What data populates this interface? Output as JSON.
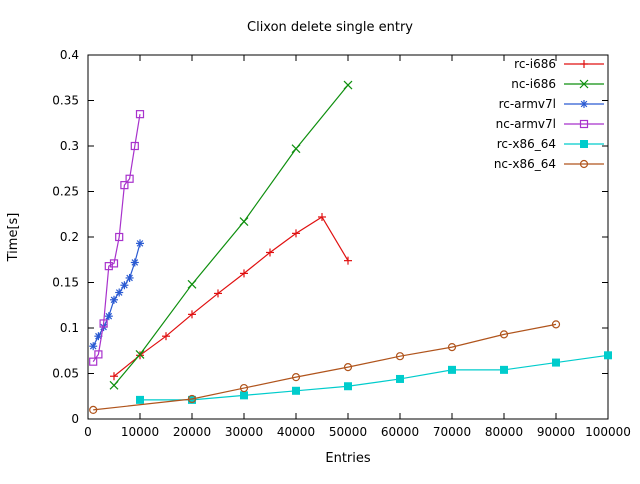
{
  "window": {
    "title": "Clixon delete single entry"
  },
  "chart_data": {
    "type": "line",
    "title": "Clixon delete single entry",
    "xlabel": "Entries",
    "ylabel": "Time[s]",
    "xlim": [
      0,
      100000
    ],
    "ylim": [
      0,
      0.4
    ],
    "grid": false,
    "legend_position": "top-right-inside",
    "xticks": [
      {
        "value": 0,
        "label": "0"
      },
      {
        "value": 10000,
        "label": "10000"
      },
      {
        "value": 20000,
        "label": "20000"
      },
      {
        "value": 30000,
        "label": "30000"
      },
      {
        "value": 40000,
        "label": "40000"
      },
      {
        "value": 50000,
        "label": "50000"
      },
      {
        "value": 60000,
        "label": "60000"
      },
      {
        "value": 70000,
        "label": "70000"
      },
      {
        "value": 80000,
        "label": "80000"
      },
      {
        "value": 90000,
        "label": "90000"
      },
      {
        "value": 100000,
        "label": "100000"
      }
    ],
    "yticks": [
      {
        "value": 0,
        "label": "0"
      },
      {
        "value": 0.05,
        "label": "0.05"
      },
      {
        "value": 0.1,
        "label": "0.1"
      },
      {
        "value": 0.15,
        "label": "0.15"
      },
      {
        "value": 0.2,
        "label": "0.2"
      },
      {
        "value": 0.25,
        "label": "0.25"
      },
      {
        "value": 0.3,
        "label": "0.3"
      },
      {
        "value": 0.35,
        "label": "0.35"
      },
      {
        "value": 0.4,
        "label": "0.4"
      }
    ],
    "series": [
      {
        "name": "rc-i686",
        "color": "#e01010",
        "marker": "plus",
        "points": [
          [
            5000,
            0.047
          ],
          [
            10000,
            0.07
          ],
          [
            15000,
            0.091
          ],
          [
            20000,
            0.115
          ],
          [
            25000,
            0.138
          ],
          [
            30000,
            0.16
          ],
          [
            35000,
            0.183
          ],
          [
            40000,
            0.204
          ],
          [
            45000,
            0.222
          ],
          [
            50000,
            0.174
          ]
        ]
      },
      {
        "name": "nc-i686",
        "color": "#0e8f0e",
        "marker": "x",
        "points": [
          [
            5000,
            0.037
          ],
          [
            10000,
            0.071
          ],
          [
            20000,
            0.148
          ],
          [
            30000,
            0.217
          ],
          [
            40000,
            0.297
          ],
          [
            50000,
            0.367
          ]
        ]
      },
      {
        "name": "rc-armv7l",
        "color": "#2a5ad2",
        "marker": "asterisk",
        "points": [
          [
            1000,
            0.08
          ],
          [
            2000,
            0.091
          ],
          [
            3000,
            0.101
          ],
          [
            4000,
            0.113
          ],
          [
            5000,
            0.131
          ],
          [
            6000,
            0.139
          ],
          [
            7000,
            0.147
          ],
          [
            8000,
            0.155
          ],
          [
            9000,
            0.172
          ],
          [
            10000,
            0.193
          ]
        ]
      },
      {
        "name": "nc-armv7l",
        "color": "#a832cc",
        "marker": "square-open",
        "points": [
          [
            1000,
            0.063
          ],
          [
            2000,
            0.071
          ],
          [
            3000,
            0.105
          ],
          [
            4000,
            0.168
          ],
          [
            5000,
            0.171
          ],
          [
            6000,
            0.2
          ],
          [
            7000,
            0.257
          ],
          [
            8000,
            0.264
          ],
          [
            9000,
            0.3
          ],
          [
            10000,
            0.335
          ]
        ]
      },
      {
        "name": "rc-x86_64",
        "color": "#00cccc",
        "marker": "square-filled",
        "points": [
          [
            10000,
            0.021
          ],
          [
            20000,
            0.021
          ],
          [
            30000,
            0.026
          ],
          [
            40000,
            0.031
          ],
          [
            50000,
            0.036
          ],
          [
            60000,
            0.044
          ],
          [
            70000,
            0.054
          ],
          [
            80000,
            0.054
          ],
          [
            90000,
            0.062
          ],
          [
            100000,
            0.07
          ]
        ]
      },
      {
        "name": "nc-x86_64",
        "color": "#b0541c",
        "marker": "circle-open",
        "points": [
          [
            1000,
            0.01
          ],
          [
            20000,
            0.022
          ],
          [
            30000,
            0.034
          ],
          [
            40000,
            0.046
          ],
          [
            50000,
            0.057
          ],
          [
            60000,
            0.069
          ],
          [
            70000,
            0.079
          ],
          [
            80000,
            0.093
          ],
          [
            90000,
            0.104
          ]
        ]
      }
    ]
  }
}
